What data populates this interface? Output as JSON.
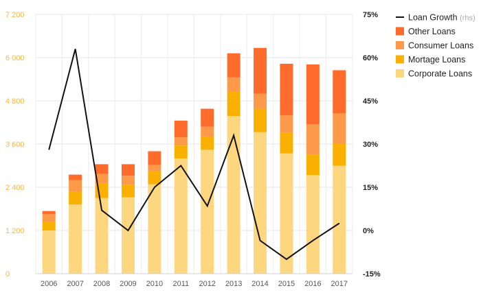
{
  "chart_data": {
    "type": "bar",
    "stacked": true,
    "categories": [
      "2006",
      "2007",
      "2008",
      "2009",
      "2010",
      "2011",
      "2012",
      "2013",
      "2014",
      "2015",
      "2016",
      "2017"
    ],
    "series": [
      {
        "name": "Corporate Loans",
        "color": "#fdd680",
        "values": [
          1200,
          1920,
          2100,
          2120,
          2480,
          3200,
          3440,
          4380,
          3930,
          3340,
          2740,
          3000
        ]
      },
      {
        "name": "Mortage Loans",
        "color": "#f9b000",
        "values": [
          230,
          350,
          400,
          350,
          360,
          360,
          370,
          670,
          650,
          580,
          560,
          610
        ]
      },
      {
        "name": "Consumer Loans",
        "color": "#fd9a4a",
        "values": [
          220,
          330,
          270,
          250,
          180,
          230,
          270,
          400,
          420,
          480,
          850,
          840
        ]
      },
      {
        "name": "Other Loans",
        "color": "#ff6b2b",
        "values": [
          90,
          150,
          270,
          320,
          380,
          460,
          500,
          670,
          1270,
          1430,
          1660,
          1200
        ]
      }
    ],
    "line": {
      "name": "Loan Growth",
      "note": "(rhs)",
      "color": "#111111",
      "values": [
        28,
        63,
        7,
        0,
        15,
        22.5,
        8.5,
        33,
        -3.5,
        -10,
        -3.5,
        2.5
      ]
    },
    "y_left": {
      "min": 0,
      "max": 7200,
      "ticks": [
        "0",
        "1 200",
        "2 400",
        "3 600",
        "4 800",
        "6 000",
        "7 200"
      ],
      "tick_values": [
        0,
        1200,
        2400,
        3600,
        4800,
        6000,
        7200
      ],
      "color": "#f5b64a"
    },
    "y_right": {
      "min": -15,
      "max": 75,
      "ticks": [
        "-15%",
        "0%",
        "15%",
        "30%",
        "45%",
        "60%",
        "75%"
      ],
      "tick_values": [
        -15,
        0,
        15,
        30,
        45,
        60,
        75
      ]
    },
    "grid": true,
    "legend_position": "top-right"
  }
}
